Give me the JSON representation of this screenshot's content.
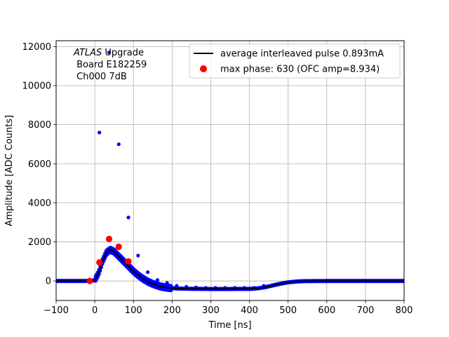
{
  "chart_data": {
    "type": "scatter",
    "xlabel": "Time [ns]",
    "ylabel": "Amplitude [ADC Counts]",
    "xlim": [
      -100,
      800
    ],
    "ylim": [
      -1000,
      12300
    ],
    "xticks": [
      -100,
      0,
      100,
      200,
      300,
      400,
      500,
      600,
      700,
      800
    ],
    "yticks": [
      0,
      2000,
      4000,
      6000,
      8000,
      10000,
      12000
    ],
    "grid": true,
    "legend_position": "top-right",
    "annotation": {
      "line1_italic": "ATLAS",
      "line1_rest": " Upgrade",
      "line2": " Board E182259",
      "line3": " Ch000 7dB"
    },
    "colors": {
      "line": "#000000",
      "points": "#0000ff",
      "max_phase": "#ff0000"
    },
    "series": [
      {
        "name": "average interleaved pulse 0.893mA",
        "kind": "line",
        "x": [
          -100,
          -10,
          0,
          10,
          20,
          30,
          40,
          50,
          60,
          70,
          80,
          90,
          100,
          110,
          120,
          130,
          140,
          150,
          160,
          170,
          180,
          190,
          200,
          220,
          250,
          300,
          350,
          400,
          420,
          440,
          460,
          480,
          500,
          520,
          540,
          560,
          600,
          700,
          800
        ],
        "y": [
          0,
          0,
          50,
          400,
          1000,
          1450,
          1600,
          1500,
          1300,
          1100,
          900,
          700,
          500,
          330,
          180,
          50,
          -60,
          -150,
          -220,
          -280,
          -320,
          -350,
          -370,
          -390,
          -400,
          -410,
          -410,
          -405,
          -380,
          -320,
          -230,
          -140,
          -70,
          -30,
          -10,
          -5,
          0,
          0,
          0
        ]
      },
      {
        "name": "max phase: 630 (OFC amp=8.934)",
        "kind": "markers",
        "x": [
          -13,
          12,
          37,
          62,
          87
        ],
        "y": [
          0,
          950,
          2150,
          1750,
          1000
        ]
      },
      {
        "kind": "scatter",
        "x": [
          12,
          37,
          62,
          87,
          112,
          137,
          162,
          187,
          212,
          237,
          262,
          287,
          312,
          337,
          362,
          387,
          412,
          437
        ],
        "y": [
          7600,
          11700,
          7000,
          3250,
          1300,
          450,
          50,
          -100,
          -250,
          -300,
          -330,
          -350,
          -350,
          -350,
          -350,
          -350,
          -350,
          -250
        ]
      }
    ]
  }
}
